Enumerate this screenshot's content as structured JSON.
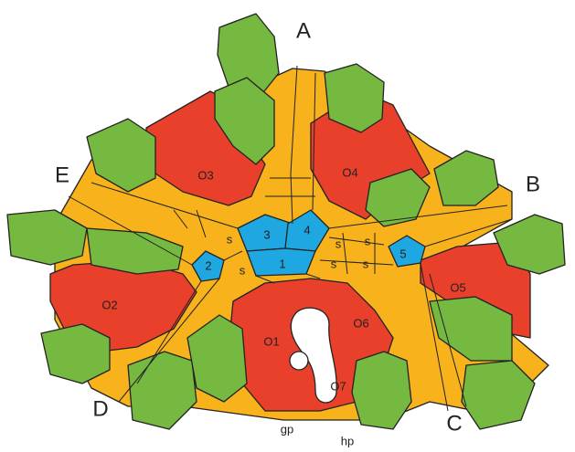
{
  "rays": [
    "A",
    "B",
    "C",
    "D",
    "E"
  ],
  "orals": [
    "O1",
    "O2",
    "O3",
    "O4",
    "O5",
    "O6",
    "O7"
  ],
  "centrals": [
    "1",
    "2",
    "3",
    "4",
    "5"
  ],
  "small": [
    "s",
    "s",
    "s",
    "s",
    "s",
    "s"
  ],
  "pores": [
    "gp",
    "hp"
  ]
}
